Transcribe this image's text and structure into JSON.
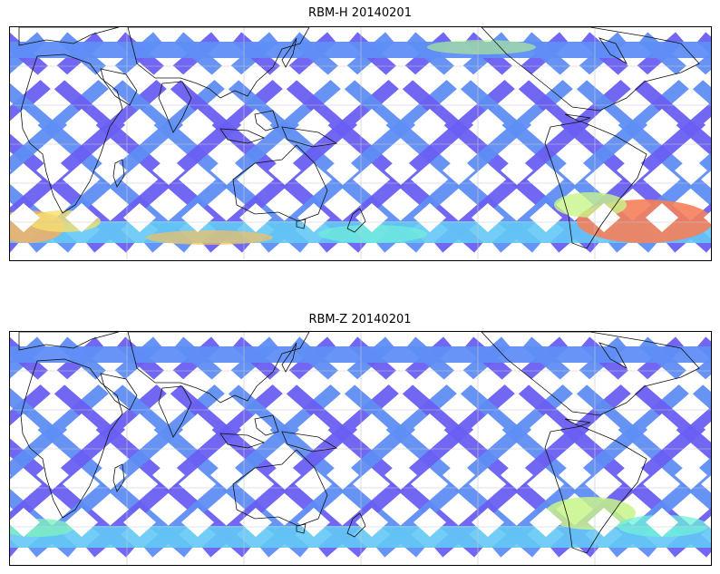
{
  "panels": [
    {
      "title": "RBM-H 20140201",
      "colormap": "jet",
      "gridlines": true,
      "coastlines": true,
      "track_palette": [
        "#6a5ff2",
        "#5f8ef5",
        "#64c8f5",
        "#6ff0d8",
        "#b8f58a",
        "#f5e070",
        "#f5a55a",
        "#f5785a"
      ],
      "high_regions": [
        "southern-ocean-south-atlantic",
        "southern-ocean-indian"
      ]
    },
    {
      "title": "RBM-Z 20140201",
      "colormap": "jet",
      "gridlines": true,
      "coastlines": true,
      "track_palette": [
        "#6a5ff2",
        "#5f8ef5",
        "#64c8f5",
        "#6ff0d8",
        "#c8f58a"
      ],
      "high_regions": [
        "south-atlantic"
      ]
    }
  ]
}
